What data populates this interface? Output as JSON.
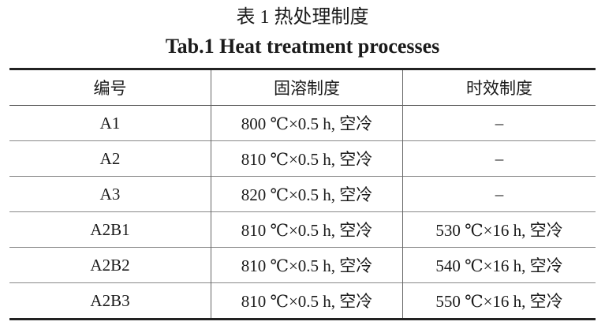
{
  "caption_cn": "表 1  热处理制度",
  "caption_en": "Tab.1  Heat treatment processes",
  "table": {
    "headers": [
      "编号",
      "固溶制度",
      "时效制度"
    ],
    "rows": [
      [
        "A1",
        "800 ℃×0.5 h, 空冷",
        "–"
      ],
      [
        "A2",
        "810 ℃×0.5 h, 空冷",
        "–"
      ],
      [
        "A3",
        "820 ℃×0.5 h, 空冷",
        "–"
      ],
      [
        "A2B1",
        "810 ℃×0.5 h, 空冷",
        "530 ℃×16 h, 空冷"
      ],
      [
        "A2B2",
        "810 ℃×0.5 h, 空冷",
        "540 ℃×16 h, 空冷"
      ],
      [
        "A2B3",
        "810 ℃×0.5 h, 空冷",
        "550 ℃×16 h, 空冷"
      ]
    ]
  }
}
